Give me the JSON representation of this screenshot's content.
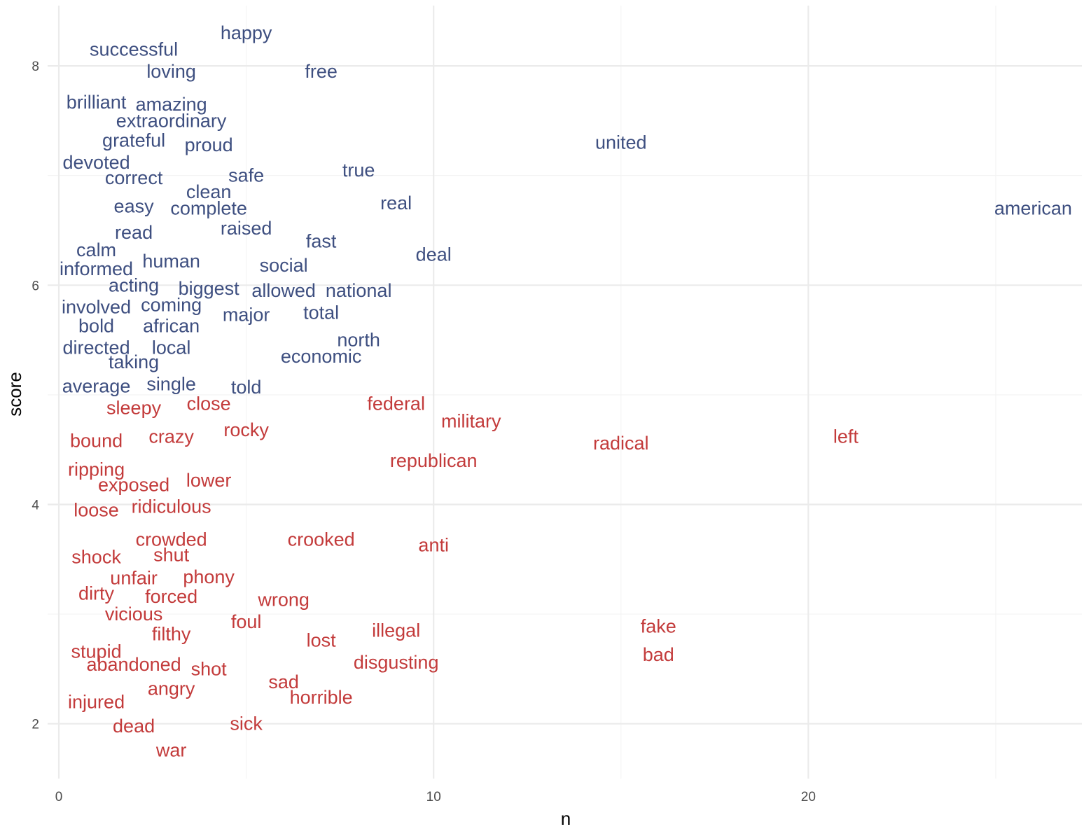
{
  "chart_data": {
    "type": "scatter",
    "xlabel": "n",
    "ylabel": "score",
    "xlim": [
      -0.3,
      27.3
    ],
    "ylim": [
      1.5,
      8.55
    ],
    "x_ticks": [
      0,
      10,
      20
    ],
    "y_ticks": [
      2,
      4,
      6,
      8
    ],
    "grid": true,
    "colors": {
      "positive": "#3e4f80",
      "negative": "#c33b3b"
    },
    "series": [
      {
        "color": "#3e4f80",
        "points": [
          {
            "label": "happy",
            "x": 5,
            "y": 8.3
          },
          {
            "label": "successful",
            "x": 2,
            "y": 8.15
          },
          {
            "label": "loving",
            "x": 3,
            "y": 7.95
          },
          {
            "label": "free",
            "x": 7,
            "y": 7.95
          },
          {
            "label": "brilliant",
            "x": 1,
            "y": 7.67
          },
          {
            "label": "amazing",
            "x": 3,
            "y": 7.65
          },
          {
            "label": "extraordinary",
            "x": 3,
            "y": 7.5
          },
          {
            "label": "grateful",
            "x": 2,
            "y": 7.32
          },
          {
            "label": "proud",
            "x": 4,
            "y": 7.28
          },
          {
            "label": "united",
            "x": 15,
            "y": 7.3
          },
          {
            "label": "devoted",
            "x": 1,
            "y": 7.12
          },
          {
            "label": "correct",
            "x": 2,
            "y": 6.98
          },
          {
            "label": "safe",
            "x": 5,
            "y": 7.0
          },
          {
            "label": "true",
            "x": 8,
            "y": 7.05
          },
          {
            "label": "clean",
            "x": 4,
            "y": 6.85
          },
          {
            "label": "easy",
            "x": 2,
            "y": 6.72
          },
          {
            "label": "complete",
            "x": 4,
            "y": 6.7
          },
          {
            "label": "real",
            "x": 9,
            "y": 6.75
          },
          {
            "label": "american",
            "x": 26,
            "y": 6.7
          },
          {
            "label": "raised",
            "x": 5,
            "y": 6.52
          },
          {
            "label": "read",
            "x": 2,
            "y": 6.48
          },
          {
            "label": "fast",
            "x": 7,
            "y": 6.4
          },
          {
            "label": "calm",
            "x": 1,
            "y": 6.32
          },
          {
            "label": "deal",
            "x": 10,
            "y": 6.28
          },
          {
            "label": "human",
            "x": 3,
            "y": 6.22
          },
          {
            "label": "social",
            "x": 6,
            "y": 6.18
          },
          {
            "label": "informed",
            "x": 1,
            "y": 6.15
          },
          {
            "label": "acting",
            "x": 2,
            "y": 6.0
          },
          {
            "label": "biggest",
            "x": 4,
            "y": 5.97
          },
          {
            "label": "allowed",
            "x": 6,
            "y": 5.95
          },
          {
            "label": "national",
            "x": 8,
            "y": 5.95
          },
          {
            "label": "involved",
            "x": 1,
            "y": 5.8
          },
          {
            "label": "coming",
            "x": 3,
            "y": 5.82
          },
          {
            "label": "total",
            "x": 7,
            "y": 5.75
          },
          {
            "label": "major",
            "x": 5,
            "y": 5.73
          },
          {
            "label": "bold",
            "x": 1,
            "y": 5.63
          },
          {
            "label": "african",
            "x": 3,
            "y": 5.63
          },
          {
            "label": "north",
            "x": 8,
            "y": 5.5
          },
          {
            "label": "directed",
            "x": 1,
            "y": 5.43
          },
          {
            "label": "local",
            "x": 3,
            "y": 5.43
          },
          {
            "label": "economic",
            "x": 7,
            "y": 5.35
          },
          {
            "label": "taking",
            "x": 2,
            "y": 5.3
          },
          {
            "label": "average",
            "x": 1,
            "y": 5.08
          },
          {
            "label": "single",
            "x": 3,
            "y": 5.1
          },
          {
            "label": "told",
            "x": 5,
            "y": 5.07
          }
        ]
      },
      {
        "color": "#c33b3b",
        "points": [
          {
            "label": "sleepy",
            "x": 2,
            "y": 4.88
          },
          {
            "label": "close",
            "x": 4,
            "y": 4.92
          },
          {
            "label": "federal",
            "x": 9,
            "y": 4.92
          },
          {
            "label": "military",
            "x": 11,
            "y": 4.76
          },
          {
            "label": "rocky",
            "x": 5,
            "y": 4.68
          },
          {
            "label": "bound",
            "x": 1,
            "y": 4.58
          },
          {
            "label": "crazy",
            "x": 3,
            "y": 4.62
          },
          {
            "label": "radical",
            "x": 15,
            "y": 4.56
          },
          {
            "label": "left",
            "x": 21,
            "y": 4.62
          },
          {
            "label": "republican",
            "x": 10,
            "y": 4.4
          },
          {
            "label": "ripping",
            "x": 1,
            "y": 4.32
          },
          {
            "label": "exposed",
            "x": 2,
            "y": 4.18
          },
          {
            "label": "lower",
            "x": 4,
            "y": 4.22
          },
          {
            "label": "loose",
            "x": 1,
            "y": 3.95
          },
          {
            "label": "ridiculous",
            "x": 3,
            "y": 3.98
          },
          {
            "label": "crowded",
            "x": 3,
            "y": 3.68
          },
          {
            "label": "crooked",
            "x": 7,
            "y": 3.68
          },
          {
            "label": "anti",
            "x": 10,
            "y": 3.63
          },
          {
            "label": "shock",
            "x": 1,
            "y": 3.52
          },
          {
            "label": "shut",
            "x": 3,
            "y": 3.54
          },
          {
            "label": "unfair",
            "x": 2,
            "y": 3.33
          },
          {
            "label": "phony",
            "x": 4,
            "y": 3.34
          },
          {
            "label": "dirty",
            "x": 1,
            "y": 3.19
          },
          {
            "label": "forced",
            "x": 3,
            "y": 3.16
          },
          {
            "label": "wrong",
            "x": 6,
            "y": 3.13
          },
          {
            "label": "vicious",
            "x": 2,
            "y": 3.0
          },
          {
            "label": "foul",
            "x": 5,
            "y": 2.93
          },
          {
            "label": "fake",
            "x": 16,
            "y": 2.89
          },
          {
            "label": "filthy",
            "x": 3,
            "y": 2.82
          },
          {
            "label": "illegal",
            "x": 9,
            "y": 2.85
          },
          {
            "label": "lost",
            "x": 7,
            "y": 2.76
          },
          {
            "label": "stupid",
            "x": 1,
            "y": 2.66
          },
          {
            "label": "bad",
            "x": 16,
            "y": 2.63
          },
          {
            "label": "abandoned",
            "x": 2,
            "y": 2.54
          },
          {
            "label": "disgusting",
            "x": 9,
            "y": 2.56
          },
          {
            "label": "shot",
            "x": 4,
            "y": 2.5
          },
          {
            "label": "sad",
            "x": 6,
            "y": 2.38
          },
          {
            "label": "angry",
            "x": 3,
            "y": 2.32
          },
          {
            "label": "horrible",
            "x": 7,
            "y": 2.24
          },
          {
            "label": "injured",
            "x": 1,
            "y": 2.2
          },
          {
            "label": "sick",
            "x": 5,
            "y": 2.0
          },
          {
            "label": "dead",
            "x": 2,
            "y": 1.98
          },
          {
            "label": "war",
            "x": 3,
            "y": 1.76
          }
        ]
      }
    ]
  }
}
